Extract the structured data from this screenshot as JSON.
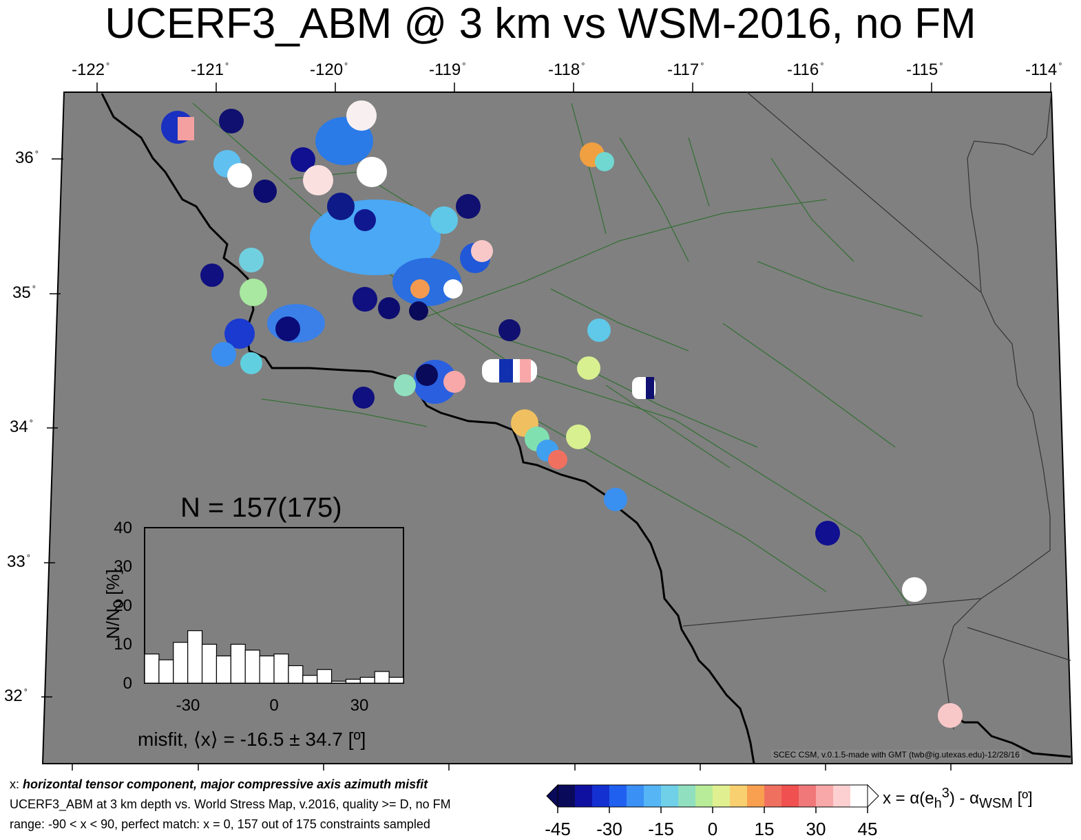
{
  "title": "UCERF3_ABM @ 3 km vs WSM-2016, no FM",
  "map": {
    "lon_ticks": [
      "-122",
      "-121",
      "-120",
      "-119",
      "-118",
      "-117",
      "-116",
      "-115",
      "-114"
    ],
    "lat_ticks": [
      "36",
      "35",
      "34",
      "33",
      "32"
    ],
    "degree_symbol": "°",
    "credit": "SCEC CSM, v.0.1.5-made with GMT (twb@ig.utexas.edu)-12/28/16"
  },
  "inset": {
    "title": "N = 157(175)",
    "ylabel": "N/N0 [%]",
    "ylabel_main": "N/N",
    "ylabel_sub": "0",
    "ylabel_rest": " [%]",
    "y_ticks": [
      "40",
      "30",
      "20",
      "10",
      "0"
    ],
    "x_ticks": [
      "-30",
      "0",
      "30"
    ],
    "xlabel": "misfit, ⟨x⟩ = -16.5 ± 34.7 [º]"
  },
  "caption": {
    "line1_prefix": "x: ",
    "line1_emph": "horizontal tensor component, major compressive axis azimuth misfit",
    "line2": "UCERF3_ABM at 3 km depth vs.  World Stress Map, v.2016, quality >= D, no FM",
    "line3": "range: -90 < x < 90, perfect match: x = 0, 157 out of 175 constraints sampled"
  },
  "colorbar": {
    "ticks": [
      "-45",
      "-30",
      "-15",
      "0",
      "15",
      "30",
      "45"
    ],
    "formula_prefix": "x = α(e",
    "formula_sub1": "h",
    "formula_sup": "3",
    "formula_mid": ") - α",
    "formula_sub2": "WSM",
    "formula_end": " [º]",
    "colors": [
      "#0a0a5a",
      "#1010a0",
      "#1530d0",
      "#2060f0",
      "#3a90f5",
      "#55b5f5",
      "#70d0e8",
      "#90e0c0",
      "#b8ec98",
      "#e0f090",
      "#f8d070",
      "#f8a050",
      "#f07060",
      "#f05050",
      "#f07878",
      "#f8a8a8",
      "#fcd0d0",
      "#ffffff"
    ]
  },
  "chart_data": {
    "type": "bar",
    "title": "N = 157(175)",
    "xlabel": "misfit, ⟨x⟩ = -16.5 ± 34.7 [º]",
    "ylabel": "N/N0 [%]",
    "xlim": [
      -45,
      45
    ],
    "ylim": [
      0,
      40
    ],
    "bin_width": 5,
    "bin_starts": [
      -45,
      -40,
      -35,
      -30,
      -25,
      -20,
      -15,
      -10,
      -5,
      0,
      5,
      10,
      15,
      20,
      25,
      30,
      35,
      40
    ],
    "values": [
      7.5,
      6,
      10.5,
      13.5,
      10,
      7,
      10,
      8.5,
      7,
      7.5,
      4.5,
      2,
      3.5,
      0.5,
      1,
      1.5,
      3,
      1.5
    ]
  }
}
